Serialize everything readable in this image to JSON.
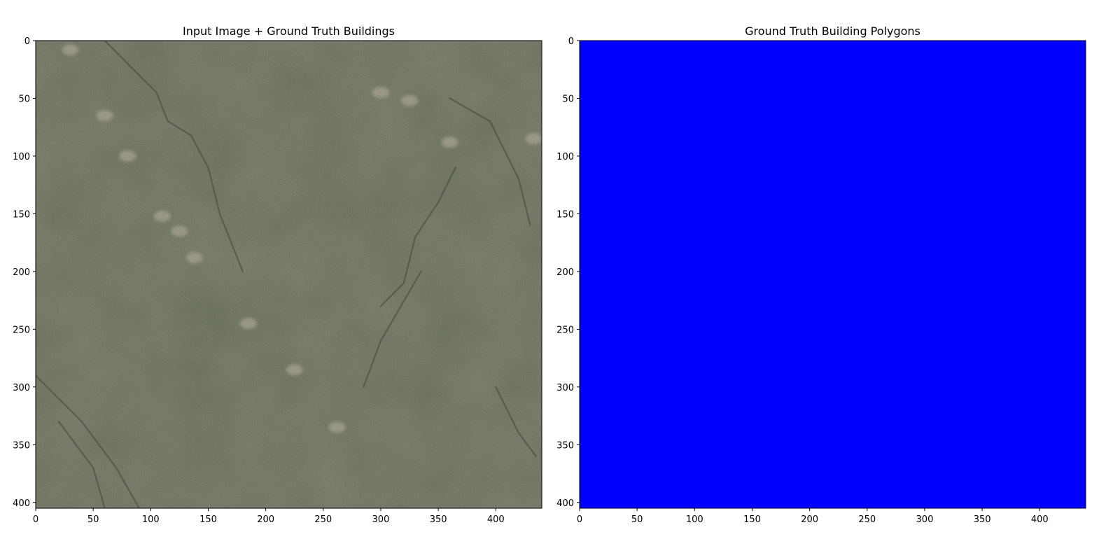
{
  "colors": {
    "background": "#ffffff",
    "axis": "#000000",
    "polygon_fill": "#0000ff",
    "image_base": "#79806b",
    "image_dark": "#5f6655",
    "image_light": "#b4b09e",
    "image_channel": "#4d5446"
  },
  "chart_data": [
    {
      "type": "image",
      "title": "Input Image + Ground Truth Buildings",
      "xlabel": "",
      "ylabel": "",
      "xlim": [
        0,
        440
      ],
      "ylim": [
        405,
        0
      ],
      "xticks": [
        0,
        50,
        100,
        150,
        200,
        250,
        300,
        350,
        400
      ],
      "yticks": [
        0,
        50,
        100,
        150,
        200,
        250,
        300,
        350,
        400
      ],
      "grid": false,
      "legend": "none",
      "content": "aerial-image",
      "bright_patches": [
        [
          30,
          8
        ],
        [
          60,
          65
        ],
        [
          80,
          100
        ],
        [
          110,
          152
        ],
        [
          125,
          165
        ],
        [
          138,
          188
        ],
        [
          185,
          245
        ],
        [
          225,
          285
        ],
        [
          262,
          335
        ],
        [
          300,
          45
        ],
        [
          325,
          52
        ],
        [
          360,
          88
        ],
        [
          433,
          85
        ]
      ]
    },
    {
      "type": "image",
      "title": "Ground Truth Building Polygons",
      "xlabel": "",
      "ylabel": "",
      "xlim": [
        0,
        440
      ],
      "ylim": [
        405,
        0
      ],
      "xticks": [
        0,
        50,
        100,
        150,
        200,
        250,
        300,
        350,
        400
      ],
      "yticks": [
        0,
        50,
        100,
        150,
        200,
        250,
        300,
        350,
        400
      ],
      "grid": false,
      "legend": "none",
      "content": "solid-fill"
    }
  ]
}
